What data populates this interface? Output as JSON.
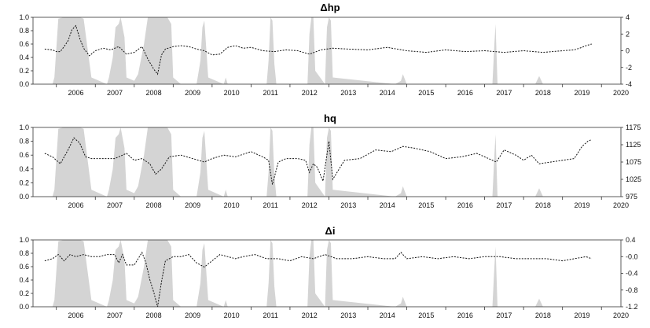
{
  "chart_data": [
    {
      "type": "area+line",
      "title": "Δhp",
      "x_range": [
        2005.4,
        2020.5
      ],
      "x_ticks": [
        "2006",
        "2007",
        "2008",
        "2009",
        "2010",
        "2011",
        "2012",
        "2013",
        "2014",
        "2015",
        "2016",
        "2017",
        "2018",
        "2019",
        "2020"
      ],
      "left_axis": {
        "range": [
          0,
          1.0
        ],
        "ticks": [
          "0.0",
          "0.2",
          "0.4",
          "0.6",
          "0.8",
          "1.0"
        ]
      },
      "right_axis": {
        "range": [
          -4,
          4
        ],
        "ticks": [
          "-4",
          "-2",
          "0",
          "2",
          "4"
        ]
      },
      "shaded_probability": {
        "x": [
          2005.4,
          2005.9,
          2005.95,
          2006.05,
          2006.2,
          2006.3,
          2006.4,
          2006.5,
          2006.6,
          2006.7,
          2006.9,
          2007.3,
          2007.35,
          2007.45,
          2007.52,
          2007.6,
          2007.65,
          2007.75,
          2007.8,
          2008.0,
          2008.1,
          2008.25,
          2008.35,
          2008.5,
          2008.7,
          2008.85,
          2008.95,
          2009.0,
          2009.2,
          2009.6,
          2009.7,
          2009.75,
          2009.8,
          2009.9,
          2010.3,
          2010.35,
          2010.4,
          2011.4,
          2011.45,
          2011.5,
          2011.55,
          2011.6,
          2011.65,
          2012.45,
          2012.5,
          2012.55,
          2012.6,
          2012.65,
          2012.9,
          2012.95,
          2013.0,
          2013.05,
          2013.1,
          2014.7,
          2014.85,
          2014.9,
          2015.0,
          2017.2,
          2017.25,
          2017.28,
          2017.33,
          2018.3,
          2018.4,
          2018.5,
          2020.5
        ],
        "y": [
          0,
          0,
          0.1,
          0.98,
          1.0,
          1.0,
          1.0,
          1.0,
          1.0,
          0.98,
          0.1,
          0,
          0.1,
          0.4,
          0.85,
          0.9,
          1.0,
          0.7,
          0.1,
          0.05,
          0.15,
          0.6,
          1.0,
          1.0,
          1.0,
          1.0,
          0.9,
          0.1,
          0,
          0,
          0.35,
          0.85,
          0.95,
          0.1,
          0,
          0.1,
          0,
          0,
          0.35,
          1.0,
          0.95,
          0.3,
          0,
          0,
          0.75,
          1.0,
          1.0,
          0.2,
          0,
          0.85,
          1.0,
          0.95,
          0.1,
          0,
          0.05,
          0.15,
          0,
          0,
          0.6,
          0.9,
          0,
          0,
          0.12,
          0,
          0
        ]
      },
      "series_line": {
        "x": [
          2005.7,
          2005.9,
          2006.0,
          2006.1,
          2006.2,
          2006.3,
          2006.4,
          2006.5,
          2006.6,
          2006.7,
          2006.85,
          2007.0,
          2007.2,
          2007.4,
          2007.6,
          2007.8,
          2008.0,
          2008.2,
          2008.35,
          2008.5,
          2008.6,
          2008.7,
          2008.8,
          2009.0,
          2009.2,
          2009.4,
          2009.6,
          2009.8,
          2010.0,
          2010.2,
          2010.4,
          2010.6,
          2010.8,
          2011.0,
          2011.3,
          2011.6,
          2011.9,
          2012.2,
          2012.5,
          2012.8,
          2013.1,
          2013.5,
          2014.0,
          2014.5,
          2015.0,
          2015.5,
          2016.0,
          2016.5,
          2017.0,
          2017.5,
          2018.0,
          2018.5,
          2019.0,
          2019.3,
          2019.5,
          2019.6,
          2019.75
        ],
        "y": [
          0.2,
          0.1,
          -0.1,
          -0.1,
          0.5,
          1.2,
          2.5,
          3.0,
          1.5,
          0.3,
          -0.6,
          0.0,
          0.3,
          0.1,
          0.5,
          -0.4,
          -0.2,
          0.5,
          -1.0,
          -2.2,
          -2.8,
          -0.5,
          0.2,
          0.5,
          0.6,
          0.5,
          0.2,
          0.0,
          -0.5,
          -0.4,
          0.4,
          0.6,
          0.3,
          0.4,
          0.0,
          -0.1,
          0.1,
          0.0,
          -0.4,
          0.1,
          0.3,
          0.2,
          0.1,
          0.4,
          0.0,
          -0.2,
          0.1,
          -0.1,
          0.0,
          -0.2,
          0.0,
          -0.2,
          0.0,
          0.1,
          0.4,
          0.6,
          0.8
        ]
      }
    },
    {
      "type": "area+line",
      "title": "hq",
      "x_range": [
        2005.4,
        2020.5
      ],
      "x_ticks": [
        "2006",
        "2007",
        "2008",
        "2009",
        "2010",
        "2011",
        "2012",
        "2013",
        "2014",
        "2015",
        "2016",
        "2017",
        "2018",
        "2019",
        "2020"
      ],
      "left_axis": {
        "range": [
          0,
          1.0
        ],
        "ticks": [
          "0.0",
          "0.2",
          "0.4",
          "0.6",
          "0.8",
          "1.0"
        ]
      },
      "right_axis": {
        "range": [
          975,
          1175
        ],
        "ticks": [
          "975",
          "1025",
          "1075",
          "1125",
          "1175"
        ]
      },
      "shaded_probability": {
        "x": [
          2005.4,
          2005.9,
          2005.95,
          2006.05,
          2006.2,
          2006.3,
          2006.4,
          2006.5,
          2006.6,
          2006.7,
          2006.9,
          2007.3,
          2007.35,
          2007.45,
          2007.52,
          2007.6,
          2007.65,
          2007.75,
          2007.8,
          2008.0,
          2008.1,
          2008.25,
          2008.35,
          2008.5,
          2008.7,
          2008.85,
          2008.95,
          2009.0,
          2009.2,
          2009.6,
          2009.7,
          2009.75,
          2009.8,
          2009.9,
          2010.3,
          2010.35,
          2010.4,
          2011.4,
          2011.45,
          2011.5,
          2011.55,
          2011.6,
          2011.65,
          2012.45,
          2012.5,
          2012.55,
          2012.6,
          2012.65,
          2012.9,
          2012.95,
          2013.0,
          2013.05,
          2013.1,
          2014.7,
          2014.85,
          2014.9,
          2015.0,
          2017.2,
          2017.25,
          2017.28,
          2017.33,
          2018.3,
          2018.4,
          2018.5,
          2020.5
        ],
        "y": [
          0,
          0,
          0.1,
          0.98,
          1.0,
          1.0,
          1.0,
          1.0,
          1.0,
          0.98,
          0.1,
          0,
          0.1,
          0.4,
          0.85,
          0.9,
          1.0,
          0.7,
          0.1,
          0.05,
          0.15,
          0.6,
          1.0,
          1.0,
          1.0,
          1.0,
          0.9,
          0.1,
          0,
          0,
          0.35,
          0.85,
          0.95,
          0.1,
          0,
          0.1,
          0,
          0,
          0.35,
          1.0,
          0.95,
          0.3,
          0,
          0,
          0.75,
          1.0,
          1.0,
          0.2,
          0,
          0.85,
          1.0,
          0.95,
          0.1,
          0,
          0.05,
          0.15,
          0,
          0,
          0.6,
          0.9,
          0,
          0,
          0.12,
          0,
          0
        ]
      },
      "series_line": {
        "x": [
          2005.7,
          2005.9,
          2006.1,
          2006.3,
          2006.45,
          2006.6,
          2006.75,
          2006.9,
          2007.2,
          2007.5,
          2007.8,
          2008.0,
          2008.2,
          2008.4,
          2008.55,
          2008.7,
          2008.9,
          2009.2,
          2009.5,
          2009.8,
          2010.0,
          2010.3,
          2010.6,
          2011.0,
          2011.3,
          2011.45,
          2011.55,
          2011.7,
          2011.9,
          2012.2,
          2012.4,
          2012.5,
          2012.6,
          2012.7,
          2012.85,
          2013.0,
          2013.1,
          2013.4,
          2013.8,
          2014.2,
          2014.6,
          2014.9,
          2015.2,
          2015.6,
          2016.0,
          2016.4,
          2016.8,
          2017.1,
          2017.3,
          2017.5,
          2017.8,
          2018.0,
          2018.2,
          2018.4,
          2018.7,
          2019.0,
          2019.3,
          2019.5,
          2019.65,
          2019.75
        ],
        "y": [
          1100,
          1090,
          1070,
          1110,
          1145,
          1130,
          1090,
          1085,
          1085,
          1085,
          1100,
          1080,
          1085,
          1070,
          1040,
          1055,
          1090,
          1095,
          1085,
          1075,
          1085,
          1095,
          1090,
          1105,
          1090,
          1080,
          1010,
          1075,
          1085,
          1085,
          1080,
          1045,
          1070,
          1060,
          1020,
          1135,
          1025,
          1080,
          1085,
          1110,
          1105,
          1120,
          1115,
          1105,
          1085,
          1090,
          1100,
          1085,
          1075,
          1110,
          1095,
          1080,
          1095,
          1070,
          1075,
          1080,
          1085,
          1120,
          1135,
          1140
        ]
      }
    },
    {
      "type": "area+line",
      "title": "Δi",
      "x_range": [
        2005.4,
        2020.5
      ],
      "x_ticks": [
        "2006",
        "2007",
        "2008",
        "2009",
        "2010",
        "2011",
        "2012",
        "2013",
        "2014",
        "2015",
        "2016",
        "2017",
        "2018",
        "2019",
        "2020"
      ],
      "left_axis": {
        "range": [
          0,
          1.0
        ],
        "ticks": [
          "0.0",
          "0.2",
          "0.4",
          "0.6",
          "0.8",
          "1.0"
        ]
      },
      "right_axis": {
        "range": [
          -1.2,
          0.4
        ],
        "ticks": [
          "-1.2",
          "-0.8",
          "-0.4",
          "-0.0",
          "0.4"
        ]
      },
      "shaded_probability": {
        "x": [
          2005.4,
          2005.9,
          2005.95,
          2006.05,
          2006.2,
          2006.3,
          2006.4,
          2006.5,
          2006.6,
          2006.7,
          2006.9,
          2007.3,
          2007.35,
          2007.45,
          2007.52,
          2007.6,
          2007.65,
          2007.75,
          2007.8,
          2008.0,
          2008.1,
          2008.25,
          2008.35,
          2008.5,
          2008.7,
          2008.85,
          2008.95,
          2009.0,
          2009.2,
          2009.6,
          2009.7,
          2009.75,
          2009.8,
          2009.9,
          2010.3,
          2010.35,
          2010.4,
          2011.4,
          2011.45,
          2011.5,
          2011.55,
          2011.6,
          2011.65,
          2012.45,
          2012.5,
          2012.55,
          2012.6,
          2012.65,
          2012.9,
          2012.95,
          2013.0,
          2013.05,
          2013.1,
          2014.7,
          2014.85,
          2014.9,
          2015.0,
          2017.2,
          2017.25,
          2017.28,
          2017.33,
          2018.3,
          2018.4,
          2018.5,
          2020.5
        ],
        "y": [
          0,
          0,
          0.1,
          0.98,
          1.0,
          1.0,
          1.0,
          1.0,
          1.0,
          0.98,
          0.1,
          0,
          0.1,
          0.4,
          0.85,
          0.9,
          1.0,
          0.7,
          0.1,
          0.05,
          0.15,
          0.6,
          1.0,
          1.0,
          1.0,
          1.0,
          0.9,
          0.1,
          0,
          0,
          0.35,
          0.85,
          0.95,
          0.1,
          0,
          0.1,
          0,
          0,
          0.35,
          1.0,
          0.95,
          0.3,
          0,
          0,
          0.75,
          1.0,
          1.0,
          0.2,
          0,
          0.85,
          1.0,
          0.95,
          0.1,
          0,
          0.05,
          0.15,
          0,
          0,
          0.6,
          0.9,
          0,
          0,
          0.12,
          0,
          0
        ]
      },
      "series_line": {
        "x": [
          2005.7,
          2005.9,
          2006.05,
          2006.2,
          2006.35,
          2006.5,
          2006.7,
          2006.9,
          2007.1,
          2007.3,
          2007.5,
          2007.6,
          2007.7,
          2007.8,
          2008.0,
          2008.2,
          2008.3,
          2008.4,
          2008.5,
          2008.6,
          2008.7,
          2008.8,
          2009.0,
          2009.2,
          2009.4,
          2009.6,
          2009.8,
          2010.0,
          2010.2,
          2010.4,
          2010.6,
          2010.8,
          2011.1,
          2011.4,
          2011.7,
          2012.0,
          2012.3,
          2012.6,
          2012.9,
          2013.2,
          2013.6,
          2014.0,
          2014.4,
          2014.7,
          2014.85,
          2015.0,
          2015.4,
          2015.8,
          2016.2,
          2016.6,
          2017.0,
          2017.4,
          2017.8,
          2018.2,
          2018.6,
          2019.0,
          2019.3,
          2019.6,
          2019.75
        ],
        "y": [
          -0.1,
          -0.05,
          0.05,
          -0.1,
          0.05,
          0.0,
          0.05,
          0.0,
          0.0,
          0.05,
          0.05,
          -0.15,
          0.05,
          -0.2,
          -0.2,
          0.1,
          -0.15,
          -0.55,
          -0.85,
          -1.2,
          -0.6,
          -0.1,
          0.0,
          0.0,
          0.05,
          -0.15,
          -0.25,
          -0.1,
          0.05,
          0.0,
          -0.05,
          0.0,
          0.05,
          -0.05,
          -0.05,
          -0.1,
          0.0,
          -0.05,
          0.05,
          -0.05,
          -0.05,
          0.0,
          -0.05,
          -0.05,
          0.1,
          -0.05,
          0.0,
          -0.05,
          0.0,
          -0.05,
          0.0,
          0.0,
          -0.05,
          -0.05,
          -0.05,
          -0.1,
          -0.05,
          0.0,
          -0.05
        ]
      }
    }
  ]
}
